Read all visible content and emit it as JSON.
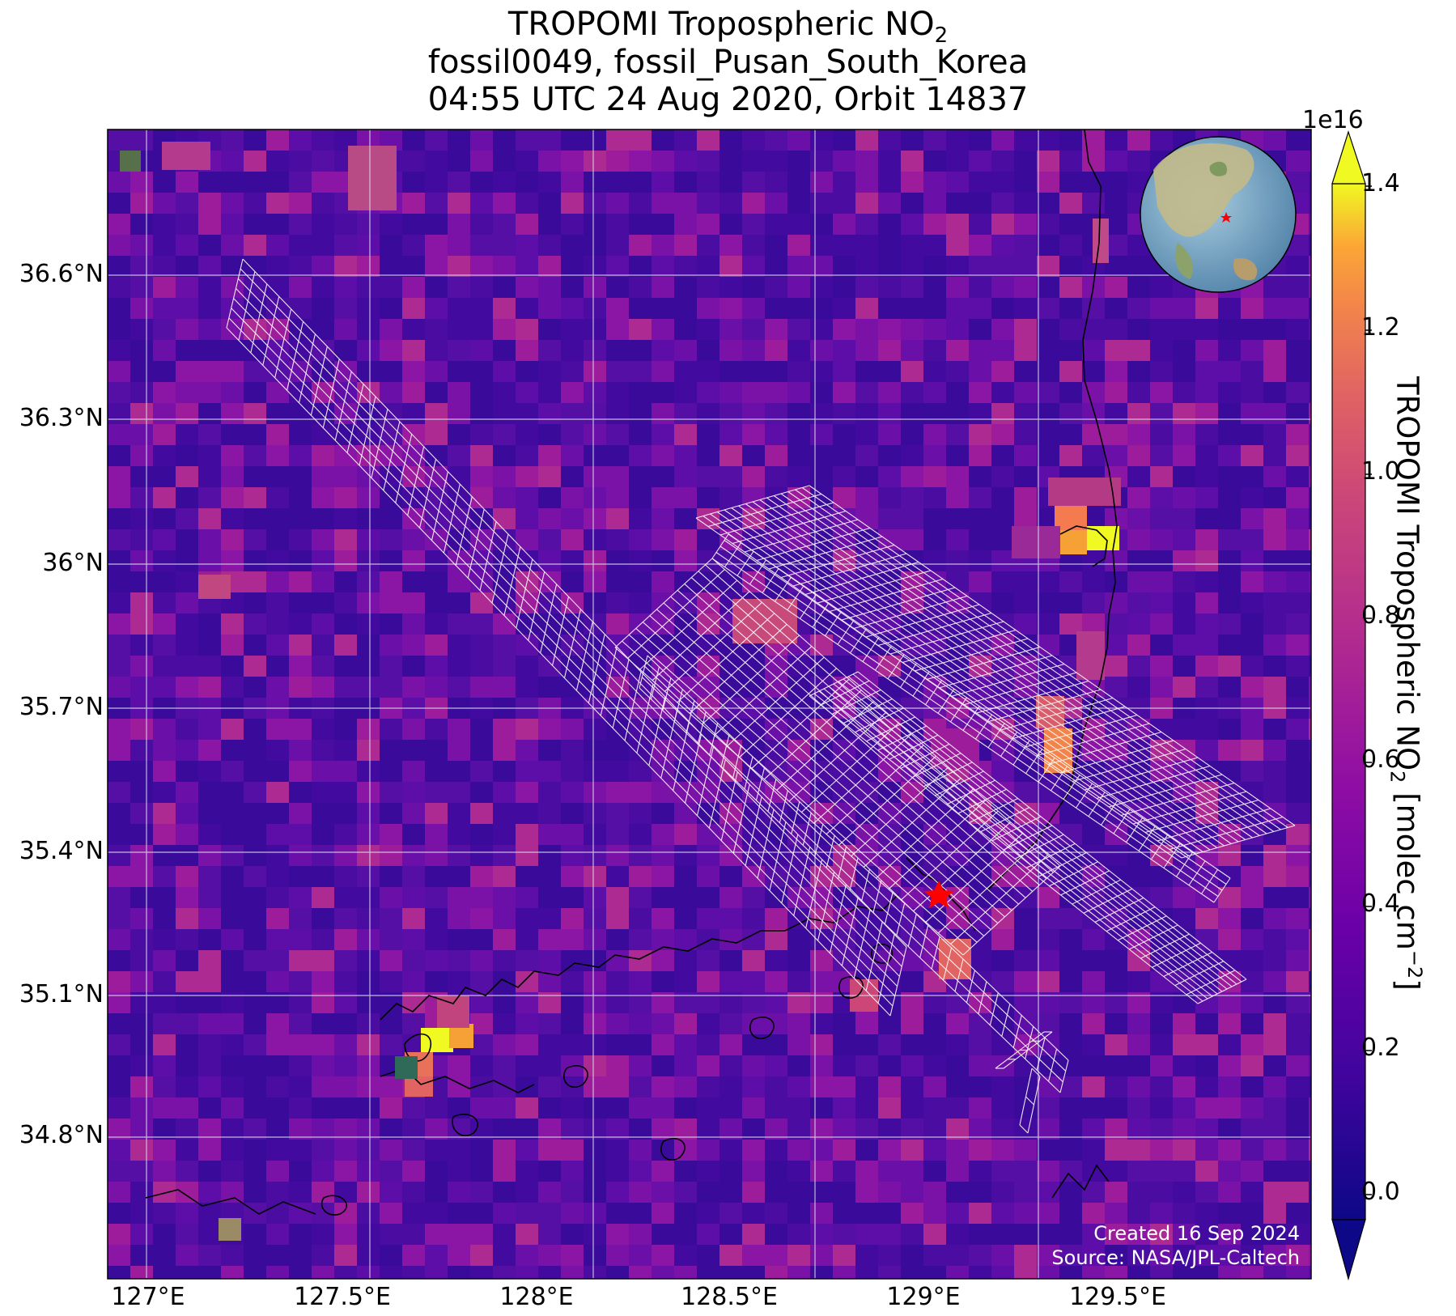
{
  "title": {
    "line1_prefix": "TROPOMI Tropospheric NO",
    "line1_subscript": "2",
    "line2": "fossil0049, fossil_Pusan_South_Korea",
    "line3": "04:55 UTC 24 Aug 2020, Orbit 14837"
  },
  "map": {
    "lon_ticks": [
      "127°E",
      "127.5°E",
      "128°E",
      "128.5°E",
      "129°E",
      "129.5°E"
    ],
    "lat_ticks": [
      "36.6°N",
      "36.3°N",
      "36°N",
      "35.7°N",
      "35.4°N",
      "35.1°N",
      "34.8°N"
    ],
    "target_marker": {
      "label": "red-star",
      "lon": 129.04,
      "lat": 35.31,
      "color": "#ff0000"
    },
    "overlay_grid_color": "#ffffff",
    "coastline_color": "#000000",
    "inset_globe": {
      "description_icon": "globe-icon",
      "marker_color": "#ff0000"
    }
  },
  "colorbar": {
    "colormap": "plasma",
    "exponent_label": "1e16",
    "ticks": [
      "0.0",
      "0.2",
      "0.4",
      "0.6",
      "0.8",
      "1.0",
      "1.2",
      "1.4"
    ],
    "label_prefix": "TROPOMI Tropospheric NO",
    "label_subscript": "2",
    "label_units": " [molec cm",
    "label_superscript": "−2",
    "label_close": "]",
    "extend": "both"
  },
  "credits": {
    "created": "Created 16 Sep 2024",
    "source": "Source: NASA/JPL-Caltech"
  }
}
